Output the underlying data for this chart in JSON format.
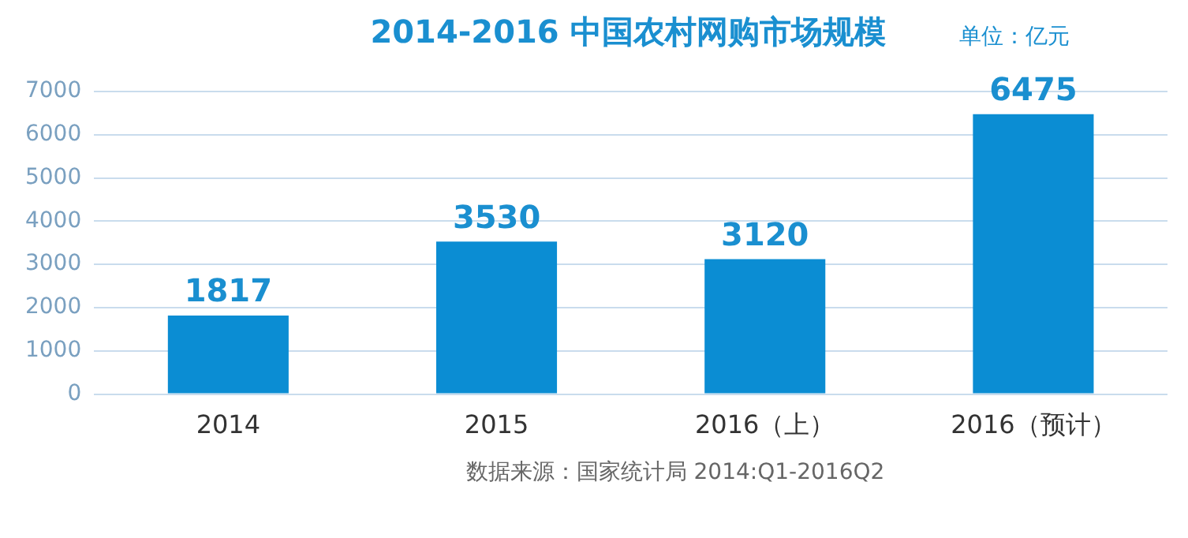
{
  "chart_data": {
    "type": "bar",
    "title": "2014-2016 中国农村网购市场规模",
    "subtitle": "单位：亿元",
    "categories": [
      "2014",
      "2015",
      "2016（上）",
      "2016（预计）"
    ],
    "values": [
      1817,
      3530,
      3120,
      6475
    ],
    "color": "#0b8dd3",
    "ylim": [
      0,
      7000
    ],
    "yticks": [
      0,
      1000,
      2000,
      3000,
      4000,
      5000,
      6000,
      7000
    ],
    "grid": "y",
    "data_labels": true,
    "legend": false,
    "annotations": [
      "数据来源：国家统计局 2014:Q1-2016Q2"
    ]
  }
}
